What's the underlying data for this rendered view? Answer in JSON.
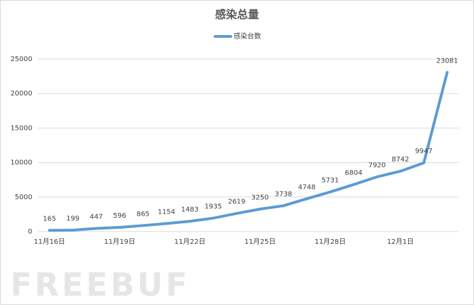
{
  "chart_data": {
    "type": "line",
    "title": "感染总量",
    "categories": [
      "11月16日",
      null,
      null,
      "11月19日",
      null,
      null,
      "11月22日",
      null,
      null,
      "11月25日",
      null,
      null,
      "11月28日",
      null,
      null,
      "12月1日",
      null,
      null
    ],
    "series": [
      {
        "name": "感染台数",
        "color": "#5b9bd5",
        "values": [
          165,
          199,
          447,
          596,
          865,
          1154,
          1483,
          1935,
          2619,
          3250,
          3738,
          4748,
          5731,
          6804,
          7920,
          8742,
          9947,
          23081
        ]
      }
    ],
    "ylim": [
      0,
      25000
    ],
    "yticks": [
      0,
      5000,
      10000,
      15000,
      20000,
      25000
    ],
    "grid": true,
    "legend": "top",
    "watermark": "FREEBUF"
  }
}
